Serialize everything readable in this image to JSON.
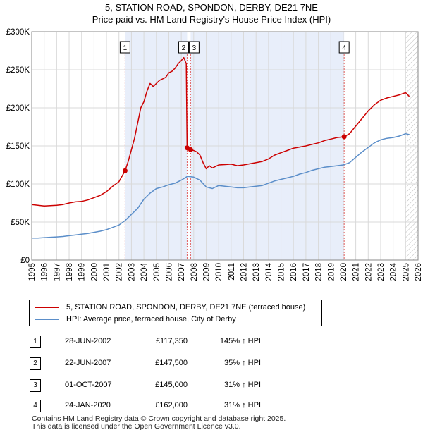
{
  "title_line1": "5, STATION ROAD, SPONDON, DERBY, DE21 7NE",
  "title_line2": "Price paid vs. HM Land Registry's House Price Index (HPI)",
  "legend": [
    {
      "label": "5, STATION ROAD, SPONDON, DERBY, DE21 7NE (terraced house)",
      "color": "#cc0000"
    },
    {
      "label": "HPI: Average price, terraced house, City of Derby",
      "color": "#5b8ec9"
    }
  ],
  "transactions": [
    {
      "num": "1",
      "date": "28-JUN-2002",
      "price": "£117,350",
      "hpi": "145% ↑ HPI"
    },
    {
      "num": "2",
      "date": "22-JUN-2007",
      "price": "£147,500",
      "hpi": "35% ↑ HPI"
    },
    {
      "num": "3",
      "date": "01-OCT-2007",
      "price": "£145,000",
      "hpi": "31% ↑ HPI"
    },
    {
      "num": "4",
      "date": "24-JAN-2020",
      "price": "£162,000",
      "hpi": "31% ↑ HPI"
    }
  ],
  "footer_line1": "Contains HM Land Registry data © Crown copyright and database right 2025.",
  "footer_line2": "This data is licensed under the Open Government Licence v3.0.",
  "chart_data": {
    "type": "line",
    "title": "Price paid vs. HM Land Registry's House Price Index (HPI)",
    "xlim": [
      1995,
      2026
    ],
    "ylim": [
      0,
      300000
    ],
    "x_ticks": [
      1995,
      1996,
      1997,
      1998,
      1999,
      2000,
      2001,
      2002,
      2003,
      2004,
      2005,
      2006,
      2007,
      2008,
      2009,
      2010,
      2011,
      2012,
      2013,
      2014,
      2015,
      2016,
      2017,
      2018,
      2019,
      2020,
      2021,
      2022,
      2023,
      2024,
      2025,
      2026
    ],
    "y_ticks": [
      0,
      50000,
      100000,
      150000,
      200000,
      250000,
      300000
    ],
    "y_tick_labels": [
      "£0",
      "£50K",
      "£100K",
      "£150K",
      "£200K",
      "£250K",
      "£300K"
    ],
    "shaded_periods": [
      [
        2002.49,
        2007.47
      ],
      [
        2007.75,
        2020.07
      ]
    ],
    "future_hatch_from": 2025.0,
    "markers": [
      {
        "label": "1",
        "x": 2002.49,
        "y": 117350
      },
      {
        "label": "2",
        "x": 2007.47,
        "y": 147500
      },
      {
        "label": "3",
        "x": 2007.75,
        "y": 145000
      },
      {
        "label": "4",
        "x": 2020.07,
        "y": 162000
      }
    ],
    "series": [
      {
        "name": "5, STATION ROAD, SPONDON, DERBY, DE21 7NE (terraced house)",
        "color": "#cc0000",
        "x": [
          1995.0,
          1995.5,
          1996.0,
          1996.5,
          1997.0,
          1997.5,
          1998.0,
          1998.5,
          1999.0,
          1999.5,
          2000.0,
          2000.5,
          2001.0,
          2001.5,
          2002.0,
          2002.49,
          2002.75,
          2003.0,
          2003.25,
          2003.5,
          2003.75,
          2004.0,
          2004.25,
          2004.5,
          2004.75,
          2005.0,
          2005.25,
          2005.5,
          2005.75,
          2006.0,
          2006.25,
          2006.5,
          2006.75,
          2007.0,
          2007.2,
          2007.4,
          2007.47,
          2007.6,
          2007.75,
          2008.0,
          2008.25,
          2008.5,
          2008.75,
          2009.0,
          2009.25,
          2009.5,
          2010.0,
          2010.5,
          2011.0,
          2011.5,
          2012.0,
          2012.5,
          2013.0,
          2013.5,
          2014.0,
          2014.5,
          2015.0,
          2015.5,
          2016.0,
          2016.5,
          2017.0,
          2017.5,
          2018.0,
          2018.5,
          2019.0,
          2019.5,
          2020.07,
          2020.5,
          2021.0,
          2021.5,
          2022.0,
          2022.5,
          2023.0,
          2023.5,
          2024.0,
          2024.5,
          2025.0,
          2025.3
        ],
        "y": [
          73000,
          72000,
          71000,
          71500,
          72000,
          73000,
          75000,
          76500,
          77000,
          79000,
          82000,
          85000,
          90000,
          97000,
          103000,
          117350,
          130000,
          145000,
          160000,
          180000,
          200000,
          208000,
          222000,
          232000,
          228000,
          232000,
          236000,
          238000,
          240000,
          246000,
          248000,
          252000,
          258000,
          262000,
          266000,
          258000,
          147500,
          147000,
          145000,
          144000,
          142000,
          138000,
          128000,
          120000,
          124000,
          121000,
          125000,
          125500,
          126000,
          124000,
          125000,
          126500,
          128000,
          129500,
          133000,
          138000,
          141000,
          144000,
          147000,
          148500,
          150000,
          152000,
          154000,
          157000,
          159000,
          161000,
          162000,
          166000,
          176000,
          186000,
          196000,
          204000,
          210000,
          213000,
          215000,
          217000,
          220000,
          215000
        ]
      },
      {
        "name": "HPI: Average price, terraced house, City of Derby",
        "color": "#5b8ec9",
        "x": [
          1995.0,
          1995.5,
          1996.0,
          1996.5,
          1997.0,
          1997.5,
          1998.0,
          1998.5,
          1999.0,
          1999.5,
          2000.0,
          2000.5,
          2001.0,
          2001.5,
          2002.0,
          2002.5,
          2003.0,
          2003.5,
          2004.0,
          2004.5,
          2005.0,
          2005.5,
          2006.0,
          2006.5,
          2007.0,
          2007.5,
          2008.0,
          2008.5,
          2009.0,
          2009.5,
          2010.0,
          2010.5,
          2011.0,
          2011.5,
          2012.0,
          2012.5,
          2013.0,
          2013.5,
          2014.0,
          2014.5,
          2015.0,
          2015.5,
          2016.0,
          2016.5,
          2017.0,
          2017.5,
          2018.0,
          2018.5,
          2019.0,
          2019.5,
          2020.0,
          2020.5,
          2021.0,
          2021.5,
          2022.0,
          2022.5,
          2023.0,
          2023.5,
          2024.0,
          2024.5,
          2025.0,
          2025.3
        ],
        "y": [
          29000,
          29000,
          29500,
          30000,
          30500,
          31000,
          32000,
          33000,
          34000,
          35000,
          36500,
          38000,
          40000,
          43000,
          46000,
          52000,
          60000,
          68000,
          80000,
          88000,
          94000,
          96000,
          99000,
          101000,
          105000,
          110000,
          109000,
          105000,
          96000,
          94000,
          98000,
          97000,
          96000,
          95000,
          95000,
          96000,
          97000,
          98000,
          101000,
          104000,
          106000,
          108000,
          110000,
          113000,
          115000,
          118000,
          120000,
          122000,
          123000,
          124000,
          125000,
          128000,
          135000,
          142000,
          148000,
          154000,
          158000,
          160000,
          161000,
          163000,
          166000,
          165000
        ]
      }
    ]
  }
}
